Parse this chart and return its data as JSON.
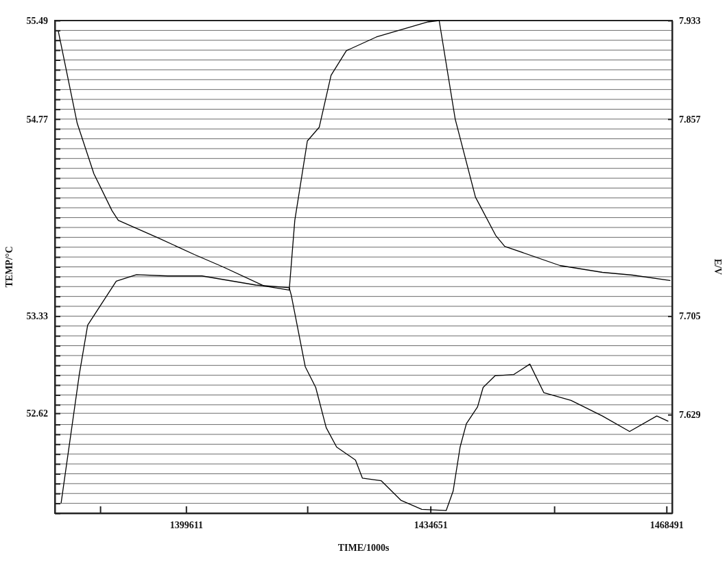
{
  "chart_data": {
    "type": "line",
    "xlabel": "TIME/1000s",
    "ylabel": "TEMP/°C",
    "y2label": "E/V",
    "xlim": [
      1380800,
      1469300
    ],
    "xticks": [
      {
        "value": 1387300,
        "label": null
      },
      1399611,
      {
        "value": 1417000,
        "label": null
      },
      1434651,
      {
        "value": 1452400,
        "label": null
      },
      1468491
    ],
    "ylim": [
      51.89,
      55.49
    ],
    "yticks": [
      55.49,
      {
        "value": 55.418,
        "label": null
      },
      {
        "value": 55.346,
        "label": null
      },
      {
        "value": 55.274,
        "label": null
      },
      {
        "value": 55.202,
        "label": null
      },
      {
        "value": 55.13,
        "label": null
      },
      {
        "value": 55.058,
        "label": null
      },
      {
        "value": 54.986,
        "label": null
      },
      {
        "value": 54.914,
        "label": null
      },
      {
        "value": 54.842,
        "label": null
      },
      54.77,
      {
        "value": 54.698,
        "label": null
      },
      {
        "value": 54.626,
        "label": null
      },
      {
        "value": 54.554,
        "label": null
      },
      {
        "value": 54.482,
        "label": null
      },
      {
        "value": 54.41,
        "label": null
      },
      {
        "value": 54.338,
        "label": null
      },
      {
        "value": 54.266,
        "label": null
      },
      {
        "value": 54.194,
        "label": null
      },
      {
        "value": 54.122,
        "label": null
      },
      {
        "value": 54.05,
        "label": null
      },
      {
        "value": 53.978,
        "label": null
      },
      {
        "value": 53.906,
        "label": null
      },
      {
        "value": 53.834,
        "label": null
      },
      {
        "value": 53.762,
        "label": null
      },
      {
        "value": 53.69,
        "label": null
      },
      {
        "value": 53.618,
        "label": null
      },
      {
        "value": 53.546,
        "label": null
      },
      {
        "value": 53.474,
        "label": null
      },
      {
        "value": 53.402,
        "label": null
      },
      53.33,
      {
        "value": 53.258,
        "label": null
      },
      {
        "value": 53.186,
        "label": null
      },
      {
        "value": 53.114,
        "label": null
      },
      {
        "value": 53.042,
        "label": null
      },
      {
        "value": 52.97,
        "label": null
      },
      {
        "value": 52.898,
        "label": null
      },
      {
        "value": 52.826,
        "label": null
      },
      {
        "value": 52.754,
        "label": null
      },
      {
        "value": 52.682,
        "label": null
      },
      52.62,
      {
        "value": 52.538,
        "label": null
      },
      {
        "value": 52.466,
        "label": null
      },
      {
        "value": 52.394,
        "label": null
      },
      {
        "value": 52.322,
        "label": null
      },
      {
        "value": 52.25,
        "label": null
      },
      {
        "value": 52.178,
        "label": null
      },
      {
        "value": 52.106,
        "label": null
      },
      {
        "value": 52.034,
        "label": null
      },
      {
        "value": 51.962,
        "label": null
      },
      {
        "value": 51.89,
        "label": null
      }
    ],
    "y2lim": [
      7.553,
      7.933
    ],
    "y2ticks": [
      7.933,
      7.857,
      7.705,
      7.629
    ],
    "grid": "y",
    "series": [
      {
        "color": "#000000",
        "x": [
          1381300,
          1384000,
          1386400,
          1389000,
          1389900,
          1395700,
          1400800,
          1404900,
          1410800,
          1414400,
          1415200,
          1417000,
          1418700,
          1420400,
          1422600,
          1426900,
          1434300,
          1435900,
          1438200,
          1441100,
          1444000,
          1445300,
          1453200,
          1459300,
          1463600,
          1469000
        ],
        "values": [
          55.41,
          54.74,
          54.37,
          54.1,
          54.03,
          53.9,
          53.78,
          53.69,
          53.55,
          53.52,
          54.03,
          54.61,
          54.71,
          55.09,
          55.27,
          55.37,
          55.48,
          55.49,
          54.77,
          54.2,
          53.92,
          53.84,
          53.7,
          53.65,
          53.63,
          53.59
        ]
      },
      {
        "color": "#000000",
        "axis": "y2",
        "x": [
          1381700,
          1384300,
          1385500,
          1389600,
          1392500,
          1397000,
          1401900,
          1409600,
          1414400,
          1414700,
          1416700,
          1418200,
          1419700,
          1421200,
          1423900,
          1424900,
          1427600,
          1430400,
          1433400,
          1436900,
          1437900,
          1438900,
          1439800,
          1441400,
          1442200,
          1443900,
          1446600,
          1448900,
          1450900,
          1454800,
          1459300,
          1463200,
          1467100,
          1468700
        ],
        "values": [
          7.561,
          7.66,
          7.698,
          7.732,
          7.737,
          7.736,
          7.736,
          7.729,
          7.727,
          7.721,
          7.666,
          7.65,
          7.619,
          7.604,
          7.594,
          7.58,
          7.578,
          7.563,
          7.556,
          7.555,
          7.57,
          7.604,
          7.622,
          7.635,
          7.65,
          7.659,
          7.66,
          7.668,
          7.646,
          7.64,
          7.628,
          7.616,
          7.628,
          7.624
        ]
      }
    ]
  }
}
